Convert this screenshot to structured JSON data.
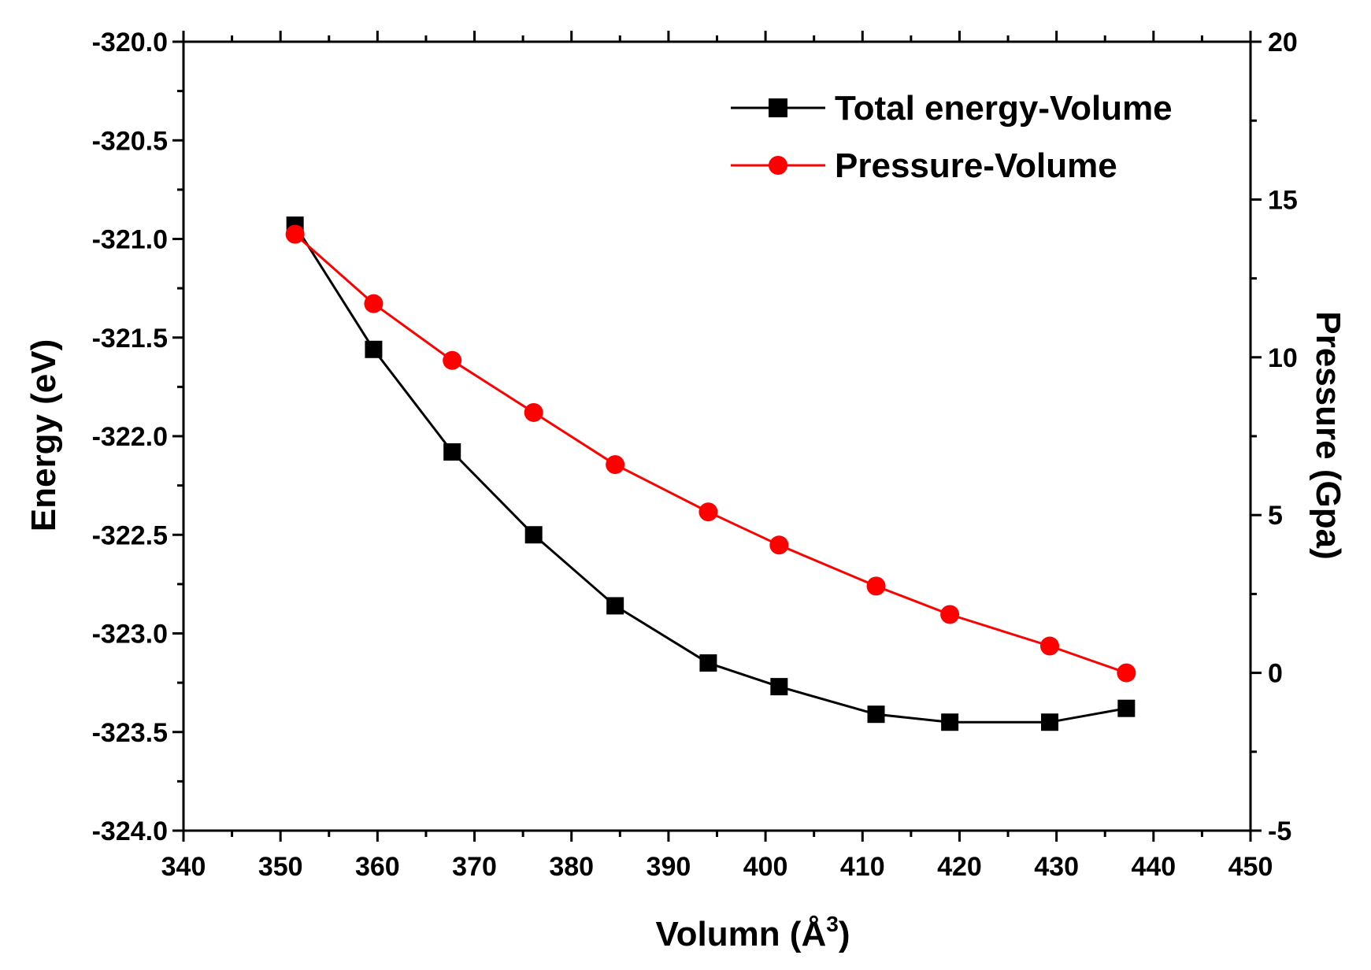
{
  "chart_data": {
    "type": "line",
    "title": "",
    "xlabel": "Volumn (Å³)",
    "xlabel_main": "Volumn (",
    "xlabel_unit": "Å",
    "xlabel_sup": "3",
    "xlabel_close": ")",
    "ylabel": "Energy (eV)",
    "y2label": "Pressure (Gpa)",
    "xlim": [
      340,
      450
    ],
    "ylim": [
      -324.0,
      -320.0
    ],
    "y2lim": [
      -5,
      20
    ],
    "x_ticks": [
      "340",
      "350",
      "360",
      "370",
      "380",
      "390",
      "400",
      "410",
      "420",
      "430",
      "440",
      "450"
    ],
    "y_ticks": [
      "-324.0",
      "-323.5",
      "-323.0",
      "-322.5",
      "-322.0",
      "-321.5",
      "-321.0",
      "-320.5",
      "-320.0"
    ],
    "y2_ticks": [
      "-5",
      "0",
      "5",
      "10",
      "15",
      "20"
    ],
    "legend_position": "top-right",
    "series": [
      {
        "name": "Total energy-Volume",
        "axis": "left",
        "color": "#000000",
        "marker": "square",
        "x": [
          351.5,
          359.6,
          367.7,
          376.1,
          384.5,
          394.1,
          401.4,
          411.4,
          419.0,
          429.3,
          437.2
        ],
        "y": [
          -320.93,
          -321.56,
          -322.08,
          -322.5,
          -322.86,
          -323.15,
          -323.27,
          -323.41,
          -323.45,
          -323.45,
          -323.38
        ]
      },
      {
        "name": "Pressure-Volume",
        "axis": "right",
        "color": "#ff0000",
        "marker": "circle",
        "x": [
          351.5,
          359.6,
          367.7,
          376.1,
          384.5,
          394.1,
          401.4,
          411.4,
          419.0,
          429.3,
          437.2
        ],
        "y": [
          13.9,
          11.7,
          9.9,
          8.25,
          6.6,
          5.1,
          4.05,
          2.75,
          1.85,
          0.85,
          0.0
        ]
      }
    ]
  }
}
